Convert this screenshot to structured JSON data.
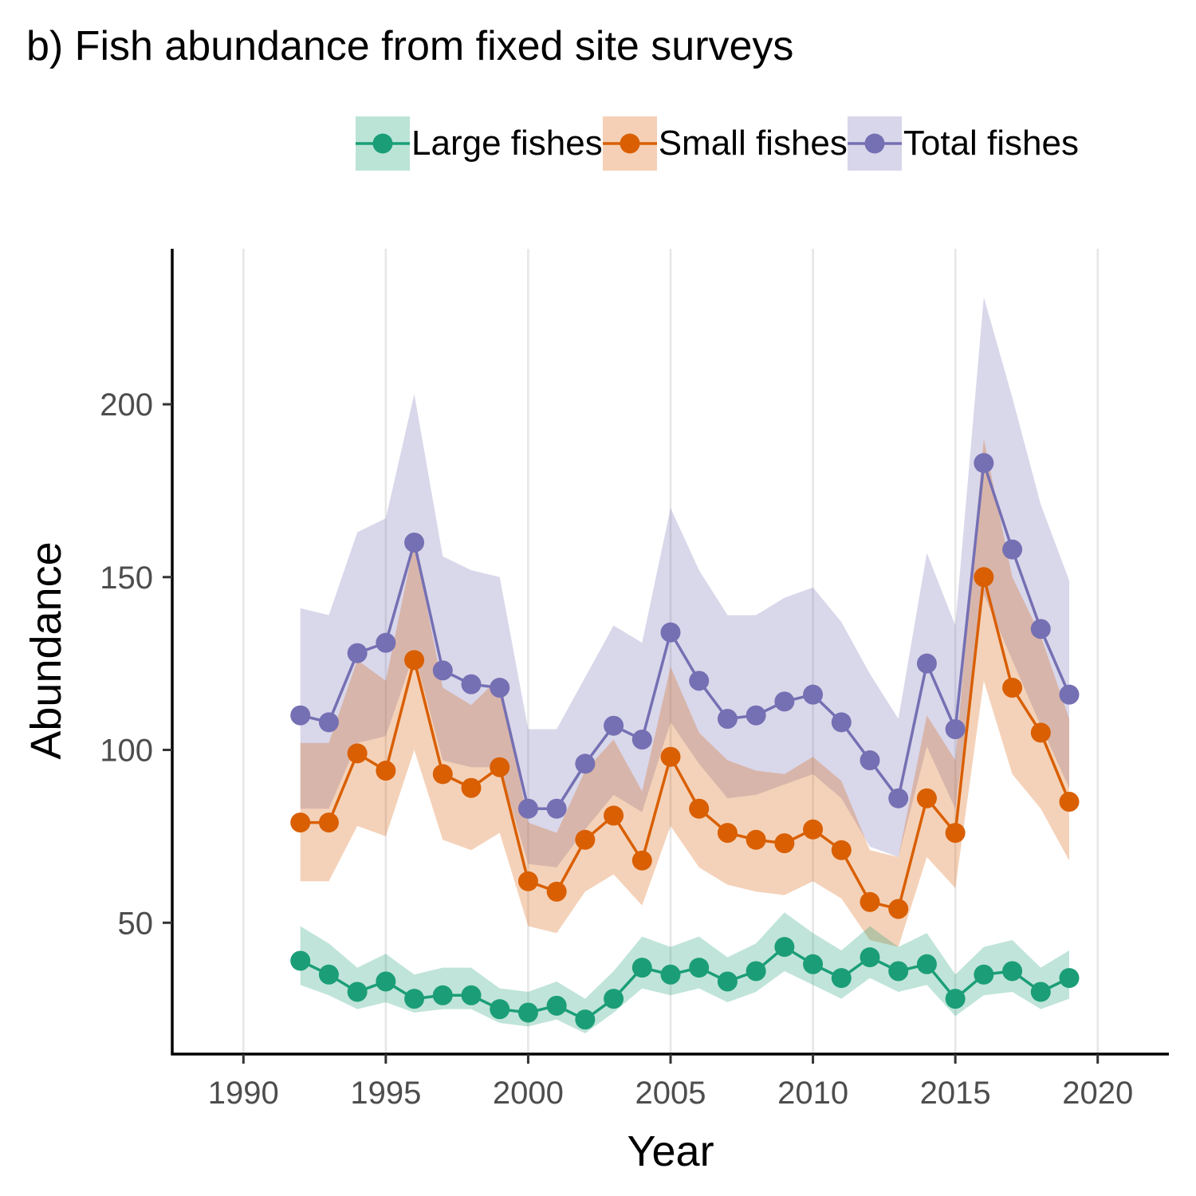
{
  "chart_data": {
    "type": "line",
    "title": "b) Fish abundance from fixed site surveys",
    "xlabel": "Year",
    "ylabel": "Abundance",
    "xlim": [
      1987.5,
      2022.5
    ],
    "ylim": [
      12,
      245
    ],
    "xticks": [
      1990,
      1995,
      2000,
      2005,
      2010,
      2015,
      2020
    ],
    "yticks": [
      50,
      100,
      150,
      200
    ],
    "grid": "vertical major",
    "legend_position": "top-right",
    "x": [
      1992,
      1993,
      1994,
      1995,
      1996,
      1997,
      1998,
      1999,
      2000,
      2001,
      2002,
      2003,
      2004,
      2005,
      2006,
      2007,
      2008,
      2009,
      2010,
      2011,
      2012,
      2013,
      2014,
      2015,
      2016,
      2017,
      2018,
      2019
    ],
    "series": [
      {
        "name": "Total fishes",
        "color": "#7570b3",
        "band_color": "#d8d6ea",
        "values": [
          110,
          108,
          128,
          131,
          160,
          123,
          119,
          118,
          83,
          83,
          96,
          107,
          103,
          134,
          120,
          109,
          110,
          114,
          116,
          108,
          97,
          86,
          125,
          106,
          183,
          158,
          135,
          116
        ],
        "lower": [
          83,
          83,
          102,
          104,
          128,
          97,
          95,
          95,
          67,
          66,
          77,
          87,
          82,
          108,
          96,
          86,
          87,
          90,
          93,
          86,
          72,
          69,
          101,
          83,
          145,
          126,
          107,
          89
        ],
        "upper": [
          141,
          139,
          163,
          167,
          203,
          156,
          152,
          150,
          106,
          106,
          121,
          136,
          131,
          170,
          152,
          139,
          139,
          144,
          147,
          137,
          122,
          109,
          157,
          136,
          231,
          202,
          171,
          149
        ]
      },
      {
        "name": "Small fishes",
        "color": "#d95f02",
        "band_color": "#f5d0b6",
        "values": [
          79,
          79,
          99,
          94,
          126,
          93,
          89,
          95,
          62,
          59,
          74,
          81,
          68,
          98,
          83,
          76,
          74,
          73,
          77,
          71,
          56,
          54,
          86,
          76,
          150,
          118,
          105,
          85
        ],
        "lower": [
          62,
          62,
          78,
          75,
          100,
          74,
          71,
          76,
          49,
          47,
          59,
          64,
          55,
          78,
          66,
          61,
          59,
          58,
          62,
          57,
          45,
          43,
          69,
          60,
          120,
          93,
          83,
          68
        ],
        "upper": [
          102,
          102,
          126,
          120,
          160,
          118,
          113,
          121,
          79,
          76,
          94,
          103,
          88,
          124,
          105,
          97,
          94,
          93,
          98,
          91,
          71,
          69,
          110,
          97,
          190,
          150,
          133,
          109
        ]
      },
      {
        "name": "Large fishes",
        "color": "#1b9e77",
        "band_color": "#bbe4d7",
        "values": [
          39,
          35,
          30,
          33,
          28,
          29,
          29,
          25,
          24,
          26,
          22,
          28,
          37,
          35,
          37,
          33,
          36,
          43,
          38,
          34,
          40,
          36,
          38,
          28,
          35,
          36,
          30,
          34
        ],
        "lower": [
          32,
          29,
          25,
          27,
          24,
          25,
          25,
          21,
          20,
          22,
          18,
          24,
          31,
          29,
          31,
          27,
          30,
          36,
          32,
          28,
          34,
          30,
          32,
          23,
          29,
          30,
          25,
          28
        ],
        "upper": [
          49,
          44,
          37,
          41,
          35,
          37,
          37,
          31,
          30,
          33,
          28,
          36,
          46,
          43,
          46,
          40,
          44,
          53,
          47,
          42,
          49,
          43,
          47,
          35,
          43,
          45,
          37,
          42
        ]
      }
    ],
    "legend_order": [
      "Large fishes",
      "Small fishes",
      "Total fishes"
    ]
  }
}
